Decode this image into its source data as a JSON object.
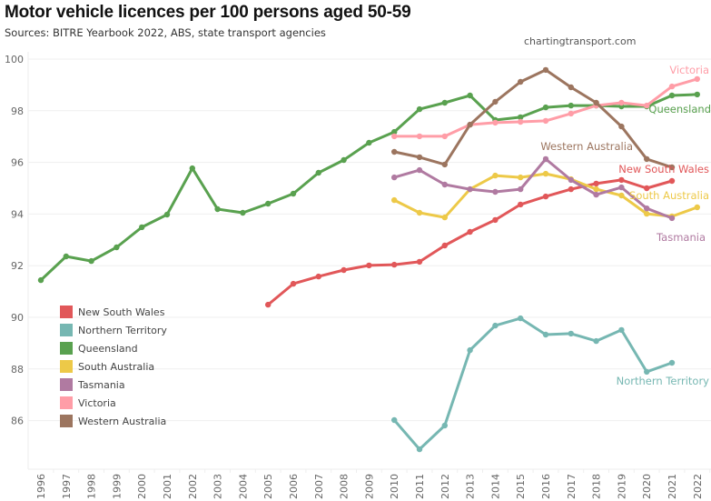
{
  "chart_data": {
    "type": "line",
    "title": "Motor vehicle licences per 100 persons aged 50-59",
    "subtitle": "Sources: BITRE Yearbook 2022, ABS, state transport agencies",
    "credit": "chartingtransport.com",
    "xlabel": "",
    "ylabel": "",
    "x": [
      1996,
      1997,
      1998,
      1999,
      2000,
      2001,
      2002,
      2003,
      2004,
      2005,
      2006,
      2007,
      2008,
      2009,
      2010,
      2011,
      2012,
      2013,
      2014,
      2015,
      2016,
      2017,
      2018,
      2019,
      2020,
      2021,
      2022
    ],
    "x_tick_labels": [
      "1996",
      "1997",
      "1998",
      "1999",
      "2000",
      "2001",
      "2002",
      "2003",
      "2004",
      "2005",
      "2006",
      "2007",
      "2008",
      "2009",
      "2010",
      "2011",
      "2012",
      "2013",
      "2014",
      "2015",
      "2016",
      "2017",
      "2018",
      "2019",
      "2020",
      "2021",
      "2022"
    ],
    "ylim": [
      84.3,
      100.2
    ],
    "y_ticks": [
      86,
      88,
      90,
      92,
      94,
      96,
      98,
      100
    ],
    "y_tick_labels": [
      "86",
      "88",
      "90",
      "92",
      "94",
      "96",
      "98",
      "100"
    ],
    "grid": true,
    "legend": "bottom-left",
    "series": [
      {
        "name": "New South Wales",
        "color": "#e15759",
        "x": [
          2005,
          2006,
          2007,
          2008,
          2009,
          2010,
          2011,
          2012,
          2013,
          2014,
          2015,
          2016,
          2017,
          2018,
          2019,
          2020,
          2021
        ],
        "values": [
          90.49,
          91.3,
          91.58,
          91.83,
          92.01,
          92.04,
          92.15,
          92.78,
          93.31,
          93.77,
          94.37,
          94.68,
          94.96,
          95.18,
          95.32,
          95.0,
          95.28
        ],
        "end_label": "New South Wales"
      },
      {
        "name": "Northern Territory",
        "color": "#76b7b2",
        "x": [
          2010,
          2011,
          2012,
          2013,
          2014,
          2015,
          2016,
          2017,
          2018,
          2019,
          2020,
          2021
        ],
        "values": [
          86.02,
          84.89,
          85.81,
          88.73,
          89.68,
          89.96,
          89.33,
          89.37,
          89.08,
          89.51,
          87.89,
          88.24
        ],
        "end_label": "Northern Territory"
      },
      {
        "name": "Queensland",
        "color": "#59a14f",
        "x": [
          1996,
          1997,
          1998,
          1999,
          2000,
          2001,
          2002,
          2003,
          2004,
          2005,
          2006,
          2007,
          2008,
          2009,
          2010,
          2011,
          2012,
          2013,
          2014,
          2015,
          2016,
          2017,
          2018,
          2019,
          2020,
          2021,
          2022
        ],
        "values": [
          91.44,
          92.36,
          92.18,
          92.71,
          93.49,
          93.98,
          95.77,
          94.19,
          94.05,
          94.4,
          94.79,
          95.6,
          96.09,
          96.76,
          97.18,
          98.06,
          98.31,
          98.59,
          97.64,
          97.75,
          98.13,
          98.2,
          98.2,
          98.17,
          98.17,
          98.59,
          98.63
        ],
        "end_label": "Queensland"
      },
      {
        "name": "South Australia",
        "color": "#edc948",
        "x": [
          2010,
          2011,
          2012,
          2013,
          2014,
          2015,
          2016,
          2017,
          2018,
          2019,
          2020,
          2021,
          2022
        ],
        "values": [
          94.54,
          94.05,
          93.87,
          94.96,
          95.49,
          95.42,
          95.56,
          95.35,
          94.96,
          94.72,
          94.01,
          93.91,
          94.26
        ],
        "end_label": "South Australia"
      },
      {
        "name": "Tasmania",
        "color": "#b07aa1",
        "x": [
          2010,
          2011,
          2012,
          2013,
          2014,
          2015,
          2016,
          2017,
          2018,
          2019,
          2020,
          2021
        ],
        "values": [
          95.42,
          95.7,
          95.14,
          94.96,
          94.86,
          94.96,
          96.13,
          95.32,
          94.75,
          95.03,
          94.22,
          93.84
        ],
        "end_label": "Tasmania"
      },
      {
        "name": "Victoria",
        "color": "#ff9da7",
        "x": [
          2010,
          2011,
          2012,
          2013,
          2014,
          2015,
          2016,
          2017,
          2018,
          2019,
          2020,
          2021,
          2022
        ],
        "values": [
          97.01,
          97.01,
          97.01,
          97.46,
          97.54,
          97.57,
          97.61,
          97.89,
          98.2,
          98.31,
          98.2,
          98.94,
          99.23
        ],
        "end_label": "Victoria"
      },
      {
        "name": "Western Australia",
        "color": "#9c755f",
        "x": [
          2010,
          2011,
          2012,
          2013,
          2014,
          2015,
          2016,
          2017,
          2018,
          2019,
          2020,
          2021
        ],
        "values": [
          96.41,
          96.2,
          95.92,
          97.46,
          98.35,
          99.12,
          99.58,
          98.91,
          98.31,
          97.39,
          96.13,
          95.81
        ],
        "end_label": "Western Australia"
      }
    ],
    "legend_entries": [
      "New South Wales",
      "Northern Territory",
      "Queensland",
      "South Australia",
      "Tasmania",
      "Victoria",
      "Western Australia"
    ]
  }
}
